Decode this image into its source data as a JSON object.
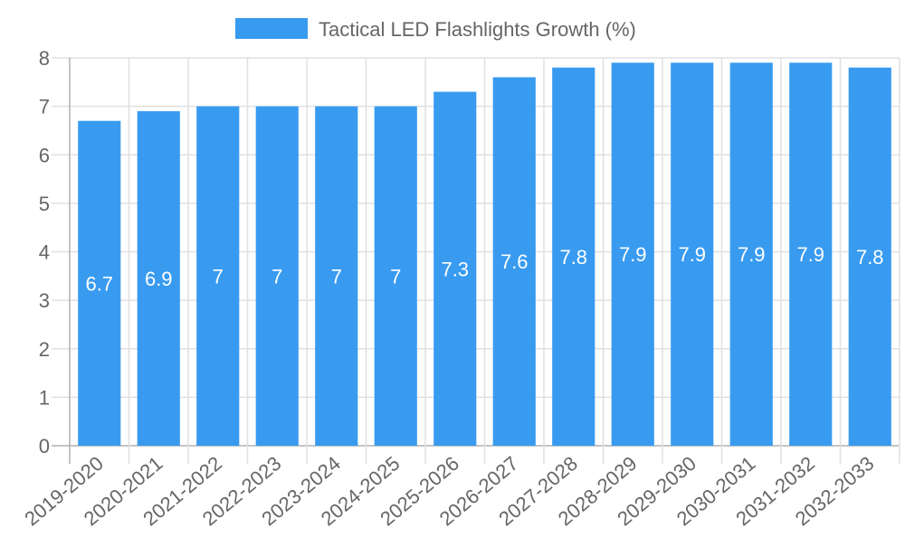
{
  "chart_data": {
    "type": "bar",
    "title": "",
    "legend": {
      "label": "Tactical LED Flashlights Growth (%)",
      "placement": "top-center"
    },
    "categories": [
      "2019-2020",
      "2020-2021",
      "2021-2022",
      "2022-2023",
      "2023-2024",
      "2024-2025",
      "2025-2026",
      "2026-2027",
      "2027-2028",
      "2028-2029",
      "2029-2030",
      "2030-2031",
      "2031-2032",
      "2032-2033"
    ],
    "series": [
      {
        "name": "Tactical LED Flashlights Growth (%)",
        "values": [
          6.7,
          6.9,
          7,
          7,
          7,
          7,
          7.3,
          7.6,
          7.8,
          7.9,
          7.9,
          7.9,
          7.9,
          7.8
        ],
        "color": "#389bf0"
      }
    ],
    "xlabel": "",
    "ylabel": "",
    "ylim": [
      0,
      8
    ],
    "yticks": [
      0,
      1,
      2,
      3,
      4,
      5,
      6,
      7,
      8
    ],
    "grid": true,
    "data_labels": true
  }
}
